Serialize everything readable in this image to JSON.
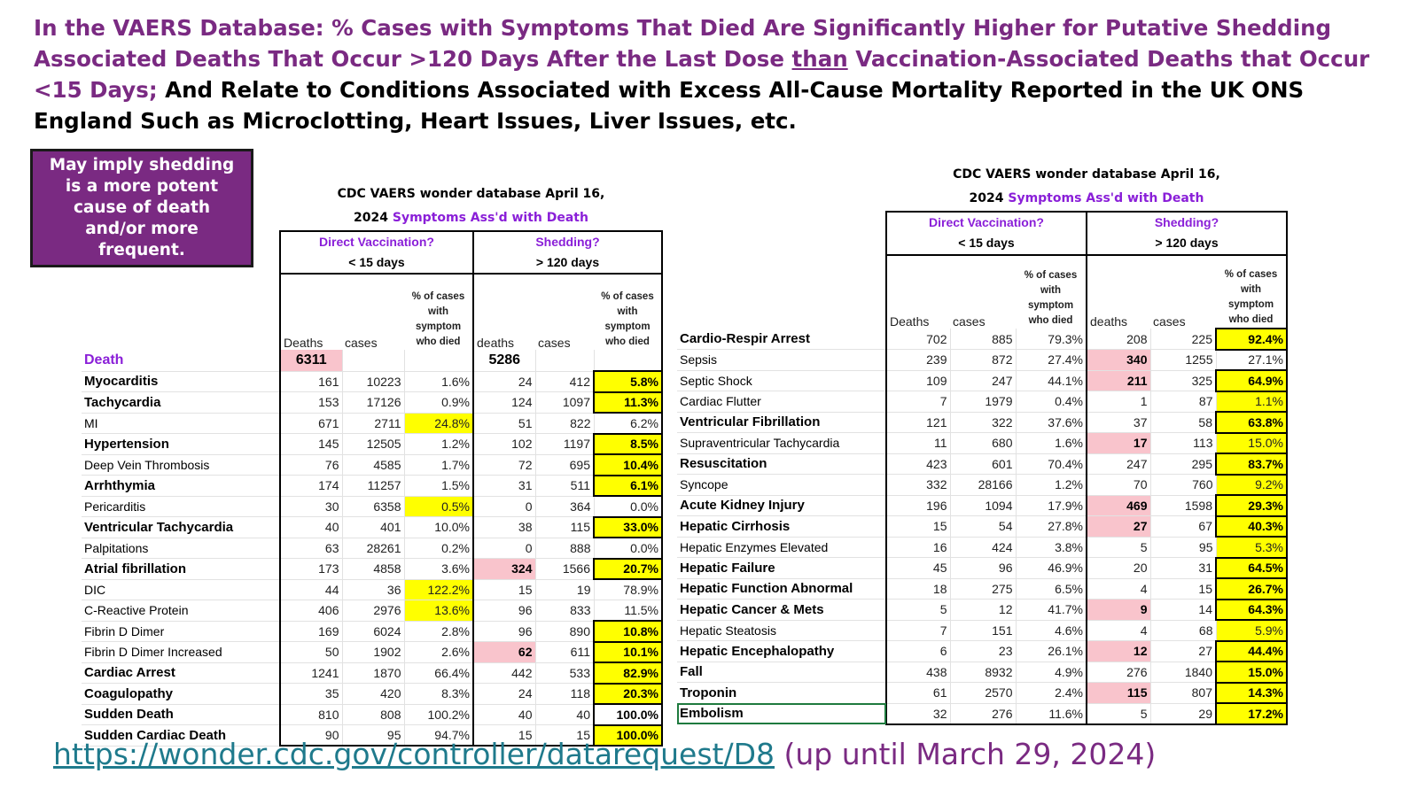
{
  "headline": {
    "part1": "In the VAERS Database: % Cases with Symptoms That Died Are Significantly Higher for Putative Shedding Associated Deaths That Occur  >120 Days After the Last Dose ",
    "than": "than",
    "part2": " Vaccination-Associated Deaths that Occur <15 Days;",
    "part3": " And Relate to Conditions Associated with Excess All-Cause Mortality Reported in the UK ONS England Such as Microclotting, Heart Issues, Liver Issues, etc."
  },
  "callout": "May imply shedding is a more potent cause of death and/or more frequent.",
  "colors": {
    "purple": "#7a2a82",
    "violet": "#8a1fd8",
    "yellow": "#ffff00",
    "pink": "#f9c4cc",
    "link": "#1f7a8c"
  },
  "left_table": {
    "title1": "CDC VAERS wonder database April 16,",
    "title2a": "2024 ",
    "title2b": "Symptoms Ass'd with Death",
    "group1": "Direct Vaccination?",
    "group2": "Shedding?",
    "days1": "< 15 days",
    "days2": "> 120 days",
    "hdr_deaths1": "Deaths",
    "hdr_cases1": "cases",
    "hdr_pct": "% of cases with symptom who died",
    "hdr_deaths2": "deaths",
    "hdr_cases2": "cases",
    "death_row": {
      "label": "Death",
      "d1": "6311",
      "d2": "5286"
    },
    "rows": [
      {
        "label": "Myocarditis",
        "b": true,
        "d1": "161",
        "c1": "10223",
        "p1": "1.6%",
        "d2": "24",
        "c2": "412",
        "p2": "5.8%",
        "p2y": "b"
      },
      {
        "label": "Tachycardia",
        "b": true,
        "d1": "153",
        "c1": "17126",
        "p1": "0.9%",
        "d2": "124",
        "c2": "1097",
        "p2": "11.3%",
        "p2y": "b"
      },
      {
        "label": "MI",
        "b": false,
        "d1": "671",
        "c1": "2711",
        "p1": "24.8%",
        "p1y": true,
        "d2": "51",
        "c2": "822",
        "p2": "6.2%"
      },
      {
        "label": "Hypertension",
        "b": true,
        "d1": "145",
        "c1": "12505",
        "p1": "1.2%",
        "d2": "102",
        "c2": "1197",
        "p2": "8.5%",
        "p2y": "b"
      },
      {
        "label": "Deep Vein Thrombosis",
        "b": false,
        "d1": "76",
        "c1": "4585",
        "p1": "1.7%",
        "d2": "72",
        "c2": "695",
        "p2": "10.4%",
        "p2y": "b"
      },
      {
        "label": "Arrhthymia",
        "b": true,
        "d1": "174",
        "c1": "11257",
        "p1": "1.5%",
        "d2": "31",
        "c2": "511",
        "p2": "6.1%",
        "p2y": "b"
      },
      {
        "label": "Pericarditis",
        "b": false,
        "d1": "30",
        "c1": "6358",
        "p1": "0.5%",
        "p1y": true,
        "d2": "0",
        "c2": "364",
        "p2": "0.0%"
      },
      {
        "label": "Ventricular Tachycardia",
        "b": true,
        "d1": "40",
        "c1": "401",
        "p1": "10.0%",
        "d2": "38",
        "c2": "115",
        "p2": "33.0%",
        "p2y": "b"
      },
      {
        "label": "Palpitations",
        "b": false,
        "d1": "63",
        "c1": "28261",
        "p1": "0.2%",
        "d2": "0",
        "c2": "888",
        "p2": "0.0%"
      },
      {
        "label": "Atrial fibrillation",
        "b": true,
        "d1": "173",
        "c1": "4858",
        "p1": "3.6%",
        "d2": "324",
        "d2p": true,
        "c2": "1566",
        "p2": "20.7%",
        "p2y": "b"
      },
      {
        "label": "DIC",
        "b": false,
        "d1": "44",
        "c1": "36",
        "p1": "122.2%",
        "p1y": true,
        "d2": "15",
        "c2": "19",
        "p2": "78.9%"
      },
      {
        "label": "C-Reactive Protein",
        "b": false,
        "d1": "406",
        "c1": "2976",
        "p1": "13.6%",
        "p1y": true,
        "d2": "96",
        "c2": "833",
        "p2": "11.5%"
      },
      {
        "label": "Fibrin D Dimer",
        "b": false,
        "d1": "169",
        "c1": "6024",
        "p1": "2.8%",
        "d2": "96",
        "c2": "890",
        "p2": "10.8%",
        "p2y": "b"
      },
      {
        "label": "Fibrin D Dimer Increased",
        "b": false,
        "d1": "50",
        "c1": "1902",
        "p1": "2.6%",
        "d2": "62",
        "d2p": true,
        "c2": "611",
        "p2": "10.1%",
        "p2y": "b"
      },
      {
        "label": "Cardiac Arrest",
        "b": true,
        "d1": "1241",
        "c1": "1870",
        "p1": "66.4%",
        "d2": "442",
        "c2": "533",
        "p2": "82.9%",
        "p2y": "b"
      },
      {
        "label": "Coagulopathy",
        "b": true,
        "d1": "35",
        "c1": "420",
        "p1": "8.3%",
        "d2": "24",
        "c2": "118",
        "p2": "20.3%",
        "p2y": "b"
      },
      {
        "label": "Sudden Death",
        "b": true,
        "d1": "810",
        "c1": "808",
        "p1": "100.2%",
        "d2": "40",
        "c2": "40",
        "p2": "100.0%",
        "p2y": "w"
      },
      {
        "label": "Sudden Cardiac Death",
        "b": true,
        "d1": "90",
        "c1": "95",
        "p1": "94.7%",
        "d2": "15",
        "c2": "15",
        "p2": "100.0%",
        "p2y": "b"
      }
    ]
  },
  "right_table": {
    "title1": "CDC VAERS wonder database April 16,",
    "title2a": "2024 ",
    "title2b": "Symptoms Ass'd with Death",
    "group1": "Direct Vaccination?",
    "group2": "Shedding?",
    "days1": "< 15 days",
    "days2": "> 120 days",
    "hdr_deaths1": "Deaths",
    "hdr_cases1": "cases",
    "hdr_pct": "% of cases with symptom who died",
    "hdr_deaths2": "deaths",
    "hdr_cases2": "cases",
    "rows": [
      {
        "label": "Cardio-Respir Arrest",
        "b": true,
        "d1": "702",
        "c1": "885",
        "p1": "79.3%",
        "d2": "208",
        "c2": "225",
        "p2": "92.4%",
        "p2y": "b"
      },
      {
        "label": "Sepsis",
        "b": false,
        "d1": "239",
        "c1": "872",
        "p1": "27.4%",
        "d2": "340",
        "d2p": true,
        "c2": "1255",
        "p2": "27.1%"
      },
      {
        "label": "Septic Shock",
        "b": false,
        "d1": "109",
        "c1": "247",
        "p1": "44.1%",
        "d2": "211",
        "d2p": true,
        "c2": "325",
        "p2": "64.9%",
        "p2y": "b"
      },
      {
        "label": "Cardiac Flutter",
        "b": false,
        "d1": "7",
        "c1": "1979",
        "p1": "0.4%",
        "d2": "1",
        "c2": "87",
        "p2": "1.1%",
        "p2y": "y"
      },
      {
        "label": "Ventricular Fibrillation",
        "b": true,
        "d1": "121",
        "c1": "322",
        "p1": "37.6%",
        "d2": "37",
        "c2": "58",
        "p2": "63.8%",
        "p2y": "b"
      },
      {
        "label": "Supraventricular Tachycardia",
        "b": false,
        "d1": "11",
        "c1": "680",
        "p1": "1.6%",
        "d2": "17",
        "d2p": true,
        "c2": "113",
        "p2": "15.0%",
        "p2y": "y"
      },
      {
        "label": "Resuscitation",
        "b": true,
        "d1": "423",
        "c1": "601",
        "p1": "70.4%",
        "d2": "247",
        "c2": "295",
        "p2": "83.7%",
        "p2y": "b"
      },
      {
        "label": "Syncope",
        "b": false,
        "d1": "332",
        "c1": "28166",
        "p1": "1.2%",
        "d2": "70",
        "c2": "760",
        "p2": "9.2%",
        "p2y": "y"
      },
      {
        "label": "Acute Kidney Injury",
        "b": true,
        "d1": "196",
        "c1": "1094",
        "p1": "17.9%",
        "d2": "469",
        "d2p": true,
        "c2": "1598",
        "p2": "29.3%",
        "p2y": "b"
      },
      {
        "label": "Hepatic Cirrhosis",
        "b": true,
        "d1": "15",
        "c1": "54",
        "p1": "27.8%",
        "d2": "27",
        "d2p": true,
        "c2": "67",
        "p2": "40.3%",
        "p2y": "b"
      },
      {
        "label": "Hepatic Enzymes Elevated",
        "b": false,
        "d1": "16",
        "c1": "424",
        "p1": "3.8%",
        "d2": "5",
        "c2": "95",
        "p2": "5.3%",
        "p2y": "y"
      },
      {
        "label": "Hepatic Failure",
        "b": true,
        "d1": "45",
        "c1": "96",
        "p1": "46.9%",
        "d2": "20",
        "c2": "31",
        "p2": "64.5%",
        "p2y": "b"
      },
      {
        "label": "Hepatic Function Abnormal",
        "b": true,
        "d1": "18",
        "c1": "275",
        "p1": "6.5%",
        "d2": "4",
        "c2": "15",
        "p2": "26.7%",
        "p2y": "b"
      },
      {
        "label": "Hepatic Cancer & Mets",
        "b": true,
        "d1": "5",
        "c1": "12",
        "p1": "41.7%",
        "d2": "9",
        "d2p": true,
        "c2": "14",
        "p2": "64.3%",
        "p2y": "b"
      },
      {
        "label": "Hepatic Steatosis",
        "b": false,
        "d1": "7",
        "c1": "151",
        "p1": "4.6%",
        "d2": "4",
        "c2": "68",
        "p2": "5.9%",
        "p2y": "y"
      },
      {
        "label": "Hepatic Encephalopathy",
        "b": true,
        "d1": "6",
        "c1": "23",
        "p1": "26.1%",
        "d2": "12",
        "d2p": true,
        "c2": "27",
        "p2": "44.4%",
        "p2y": "b"
      },
      {
        "label": "Fall",
        "b": true,
        "d1": "438",
        "c1": "8932",
        "p1": "4.9%",
        "d2": "276",
        "c2": "1840",
        "p2": "15.0%",
        "p2y": "b"
      },
      {
        "label": "Troponin",
        "b": true,
        "d1": "61",
        "c1": "2570",
        "p1": "2.4%",
        "d2": "115",
        "d2p": true,
        "c2": "807",
        "p2": "14.3%",
        "p2y": "b"
      },
      {
        "label": "Embolism",
        "b": true,
        "d1": "32",
        "c1": "276",
        "p1": "11.6%",
        "d2": "5",
        "c2": "29",
        "p2": "17.2%",
        "p2y": "b",
        "sel": true
      }
    ]
  },
  "source": {
    "link": "https://wonder.cdc.gov/controller/datarequest/D8",
    "note": " (up until March 29, 2024)"
  }
}
